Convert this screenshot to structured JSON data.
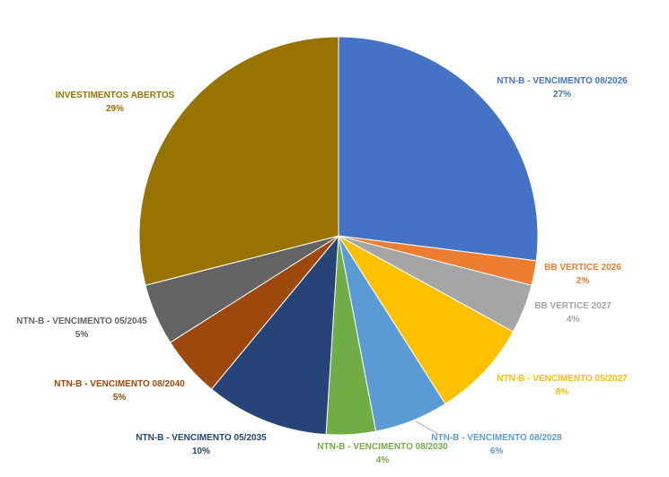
{
  "chart_data": {
    "type": "pie",
    "start_angle_deg": 0,
    "direction": "clockwise",
    "slices": [
      {
        "label": "NTN-B - VENCIMENTO 08/2026",
        "value": 27,
        "pct_text": "27%",
        "color": "#4472C4",
        "label_color": "#4472C4"
      },
      {
        "label": "BB VERTICE 2026",
        "value": 2,
        "pct_text": "2%",
        "color": "#ED7D31",
        "label_color": "#ED7D31"
      },
      {
        "label": "BB VERTICE 2027",
        "value": 4,
        "pct_text": "4%",
        "color": "#A5A5A5",
        "label_color": "#A5A5A5"
      },
      {
        "label": "NTN-B - VENCIMENTO 05/2027",
        "value": 8,
        "pct_text": "8%",
        "color": "#FFC000",
        "label_color": "#FFC000"
      },
      {
        "label": "NTN-B - VENCIMENTO 08/2028",
        "value": 6,
        "pct_text": "6%",
        "color": "#5B9BD5",
        "label_color": "#5B9BD5"
      },
      {
        "label": "NTN-B - VENCIMENTO 08/2030",
        "value": 4,
        "pct_text": "4%",
        "color": "#70AD47",
        "label_color": "#70AD47"
      },
      {
        "label": "NTN-B - VENCIMENTO 05/2035",
        "value": 10,
        "pct_text": "10%",
        "color": "#264478",
        "label_color": "#264478"
      },
      {
        "label": "NTN-B - VENCIMENTO 08/2040",
        "value": 5,
        "pct_text": "5%",
        "color": "#9E480E",
        "label_color": "#9E480E"
      },
      {
        "label": "NTN-B - VENCIMENTO 05/2045",
        "value": 5,
        "pct_text": "5%",
        "color": "#636363",
        "label_color": "#636363"
      },
      {
        "label": "INVESTIMENTOS ABERTOS",
        "value": 29,
        "pct_text": "29%",
        "color": "#997300",
        "label_color": "#997300"
      }
    ],
    "legend": "none",
    "data_labels": "outside"
  }
}
